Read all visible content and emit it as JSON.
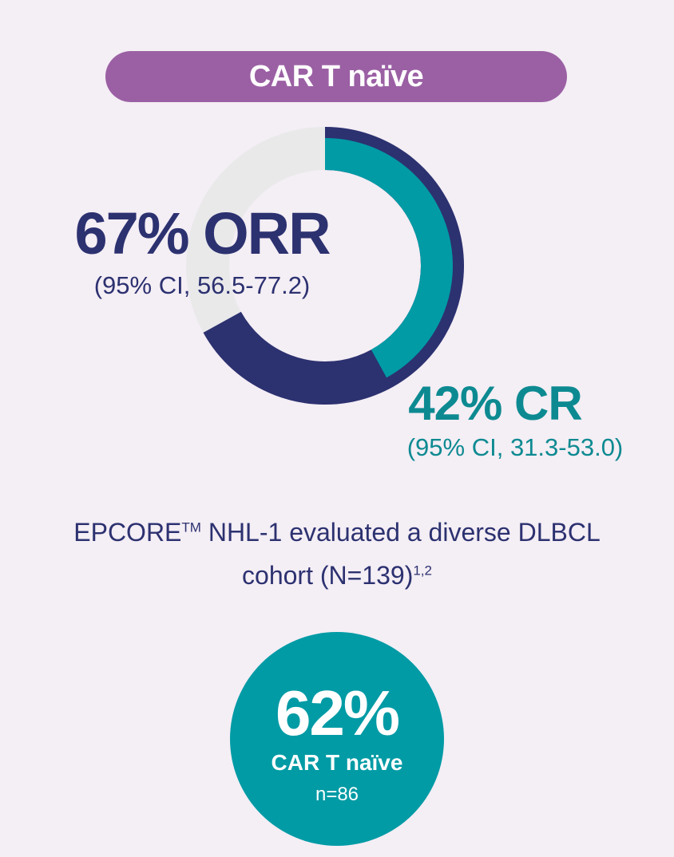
{
  "header": {
    "title": "CAR T naïve"
  },
  "colors": {
    "background": "#f4eef5",
    "pill": "#9b60a4",
    "navy": "#2c3170",
    "teal": "#009ba5",
    "teal_text": "#0d8a91",
    "track": "#e9e9ea"
  },
  "chart_data": {
    "type": "pie",
    "title": "",
    "series": [
      {
        "name": "ORR",
        "value": 67,
        "unit": "%",
        "label": "67% ORR",
        "ci": "(95% CI, 56.5-77.2)",
        "color": "#2c3170"
      },
      {
        "name": "CR",
        "value": 42,
        "unit": "%",
        "label": "42% CR",
        "ci": "(95% CI, 31.3-53.0)",
        "color": "#009ba5"
      }
    ]
  },
  "description": {
    "line1_prefix": "EPCORE",
    "line1_tm": "TM",
    "line1_suffix": " NHL-1 evaluated a diverse DLBCL",
    "line2": "cohort (N=139)",
    "line2_refs": "1,2"
  },
  "cohort": {
    "percent": "62%",
    "label": "CAR T naïve",
    "n": "n=86",
    "value": 62
  }
}
